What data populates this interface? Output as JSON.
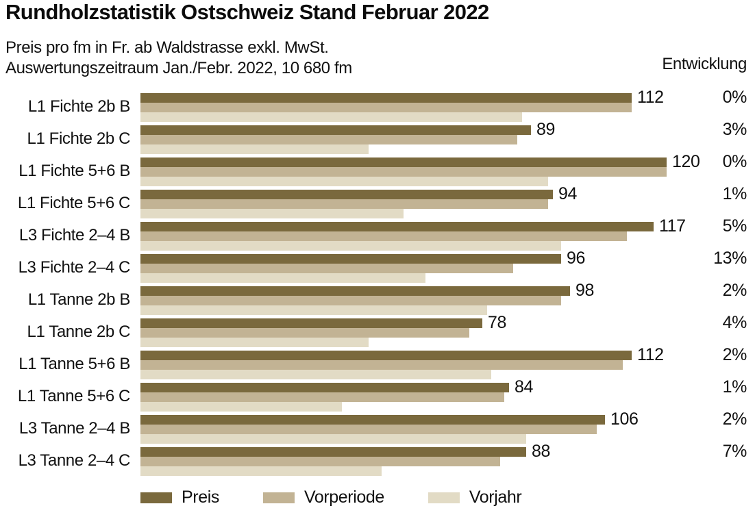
{
  "header": {
    "title": "Rundholzstatistik Ostschweiz Stand Februar 2022",
    "subtitle1": "Preis pro fm in Fr. ab Waldstrasse exkl. MwSt.",
    "subtitle2": "Auswertungszeitraum Jan./Febr. 2022, 10 680 fm",
    "development_label": "Entwicklung"
  },
  "colors": {
    "preis": "#7a693d",
    "vorperiode": "#c2b394",
    "vorjahr": "#e2dbc5",
    "text": "#111111"
  },
  "chart_data": {
    "type": "bar",
    "orientation": "horizontal",
    "title": "Rundholzstatistik Ostschweiz Stand Februar 2022",
    "xlabel": "Preis pro fm in Fr. ab Waldstrasse exkl. MwSt.",
    "xlim": [
      0,
      127
    ],
    "grid": false,
    "legend_position": "bottom",
    "categories": [
      "L1 Fichte 2b B",
      "L1 Fichte 2b C",
      "L1 Fichte 5+6 B",
      "L1 Fichte 5+6 C",
      "L3 Fichte 2–4 B",
      "L3 Fichte 2–4 C",
      "L1 Tanne 2b B",
      "L1 Tanne 2b C",
      "L1 Tanne 5+6 B",
      "L1 Tanne 5+6 C",
      "L3 Tanne 2–4 B",
      "L3 Tanne 2–4 C"
    ],
    "series": [
      {
        "name": "Preis",
        "color": "#7a693d",
        "values": [
          112,
          89,
          120,
          94,
          117,
          96,
          98,
          78,
          112,
          84,
          106,
          88
        ]
      },
      {
        "name": "Vorperiode",
        "color": "#c2b394",
        "values": [
          112,
          86,
          120,
          93,
          111,
          85,
          96,
          75,
          110,
          83,
          104,
          82
        ]
      },
      {
        "name": "Vorjahr",
        "color": "#e2dbc5",
        "values": [
          87,
          52,
          93,
          60,
          96,
          65,
          79,
          52,
          80,
          46,
          88,
          55
        ]
      }
    ],
    "value_labels": [
      "112",
      "89",
      "120",
      "94",
      "117",
      "96",
      "98",
      "78",
      "112",
      "84",
      "106",
      "88"
    ],
    "development_percent": [
      "0%",
      "3%",
      "0%",
      "1%",
      "5%",
      "13%",
      "2%",
      "4%",
      "2%",
      "1%",
      "2%",
      "7%"
    ]
  },
  "legend": [
    {
      "label": "Preis",
      "color": "#7a693d"
    },
    {
      "label": "Vorperiode",
      "color": "#c2b394"
    },
    {
      "label": "Vorjahr",
      "color": "#e2dbc5"
    }
  ]
}
